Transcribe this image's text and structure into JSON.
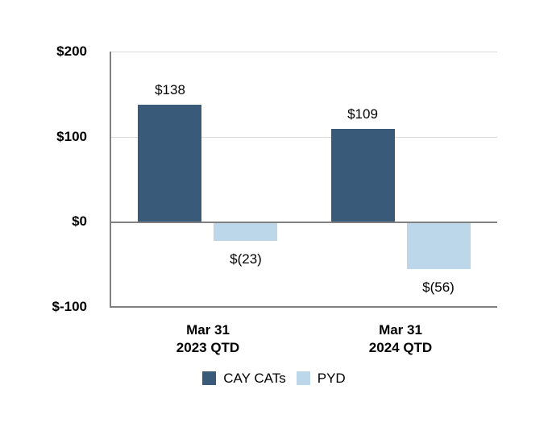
{
  "chart_data": {
    "type": "bar",
    "title": "",
    "categories": [
      {
        "line1": "Mar 31",
        "line2": "2023 QTD"
      },
      {
        "line1": "Mar 31",
        "line2": "2024 QTD"
      }
    ],
    "series": [
      {
        "name": "CAY CATs",
        "color": "#3a5a7a",
        "values": [
          138,
          109
        ],
        "value_labels": [
          "$138",
          "$109"
        ]
      },
      {
        "name": "PYD",
        "color": "#bcd6ea",
        "values": [
          -23,
          -56
        ],
        "value_labels": [
          "$(23)",
          "$(56)"
        ]
      }
    ],
    "y_axis": {
      "min": -100,
      "max": 200,
      "ticks": [
        {
          "value": 200,
          "label": "$200",
          "line": "light"
        },
        {
          "value": 100,
          "label": "$100",
          "line": "light"
        },
        {
          "value": 0,
          "label": "$0",
          "line": "dark"
        },
        {
          "value": -100,
          "label": "$-100",
          "line": "dark"
        }
      ]
    },
    "legend": {
      "position": "bottom"
    },
    "grid": true
  },
  "colors": {
    "grid_light": "#d9d9d9",
    "axis_gray": "#808080",
    "bar_dark_blue": "#3a5a7a",
    "bar_light_blue": "#bcd6ea",
    "text": "#000000",
    "background": "#ffffff"
  }
}
